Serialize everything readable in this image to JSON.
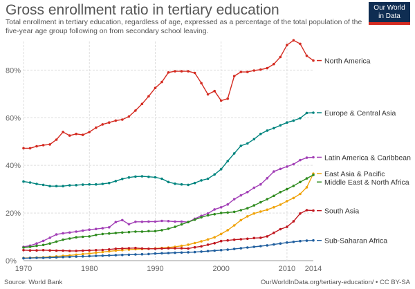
{
  "header": {
    "title": "Gross enrollment ratio in tertiary education",
    "subtitle": "Total enrollment in tertiary education, regardless of age, expressed as a percentage of the total population of the five-year age group following on from secondary school leaving.",
    "logo_line1": "Our World",
    "logo_line2": "in Data"
  },
  "footer": {
    "source": "Source: World Bank",
    "url": "OurWorldInData.org/tertiary-education/ • CC BY-SA"
  },
  "colors": {
    "North America": "#d42b21",
    "Europe & Central Asia": "#00847e",
    "Latin America & Caribbean": "#a23fb6",
    "East Asia & Pacific": "#f0a30a",
    "Middle East & North Africa": "#2e8b1e",
    "South Asia": "#c0161e",
    "Sub-Saharan Africa": "#1f5e9e"
  },
  "chart_data": {
    "type": "line",
    "title": "Gross enrollment ratio in tertiary education",
    "xlabel": "",
    "ylabel": "",
    "xlim": [
      1970,
      2014
    ],
    "ylim": [
      0,
      92
    ],
    "x_ticks": [
      1970,
      1980,
      1990,
      2000,
      2010,
      2014
    ],
    "y_ticks": [
      0,
      20,
      40,
      60,
      80
    ],
    "y_tick_labels": [
      "0%",
      "20%",
      "40%",
      "60%",
      "80%"
    ],
    "grid": true,
    "legend": "right-inline",
    "series": [
      {
        "name": "North America",
        "x": [
          1970,
          1971,
          1972,
          1973,
          1974,
          1975,
          1976,
          1977,
          1978,
          1979,
          1980,
          1981,
          1982,
          1983,
          1984,
          1985,
          1986,
          1987,
          1988,
          1989,
          1990,
          1991,
          1992,
          1993,
          1994,
          1995,
          1996,
          1997,
          1998,
          1999,
          2000,
          2001,
          2002,
          2003,
          2004,
          2005,
          2006,
          2007,
          2008,
          2009,
          2010,
          2011,
          2012,
          2013,
          2014
        ],
        "values": [
          47.2,
          47.2,
          48.0,
          48.5,
          48.8,
          50.8,
          54.0,
          52.5,
          53.2,
          52.8,
          54.0,
          55.8,
          57.2,
          58.0,
          58.8,
          59.2,
          60.5,
          63.0,
          65.8,
          69.0,
          72.5,
          75.0,
          79.0,
          79.5,
          79.5,
          79.5,
          78.8,
          74.5,
          69.8,
          71.2,
          67.2,
          68.0,
          77.5,
          79.2,
          79.2,
          79.8,
          80.2,
          80.8,
          82.5,
          85.5,
          90.5,
          92.5,
          91.0,
          86.0,
          84.0
        ]
      },
      {
        "name": "Europe & Central Asia",
        "x": [
          1970,
          1971,
          1972,
          1973,
          1974,
          1975,
          1976,
          1977,
          1978,
          1979,
          1980,
          1981,
          1982,
          1983,
          1984,
          1985,
          1986,
          1987,
          1988,
          1989,
          1990,
          1991,
          1992,
          1993,
          1994,
          1995,
          1996,
          1997,
          1998,
          1999,
          2000,
          2001,
          2002,
          2003,
          2004,
          2005,
          2006,
          2007,
          2008,
          2009,
          2010,
          2011,
          2012,
          2013,
          2014
        ],
        "values": [
          33.2,
          32.8,
          32.2,
          31.8,
          31.3,
          31.3,
          31.3,
          31.6,
          31.7,
          31.9,
          32.0,
          32.0,
          32.2,
          32.6,
          33.4,
          34.3,
          34.9,
          35.3,
          35.4,
          35.2,
          35.0,
          34.4,
          33.0,
          32.3,
          32.0,
          31.8,
          32.6,
          33.7,
          34.4,
          36.2,
          38.4,
          41.8,
          45.0,
          48.2,
          49.2,
          51.0,
          53.2,
          54.6,
          55.6,
          56.8,
          58.0,
          58.8,
          59.8,
          62.0,
          62.1
        ]
      },
      {
        "name": "Latin America & Caribbean",
        "x": [
          1970,
          1971,
          1972,
          1973,
          1974,
          1975,
          1976,
          1977,
          1978,
          1979,
          1980,
          1981,
          1982,
          1983,
          1984,
          1985,
          1986,
          1987,
          1988,
          1989,
          1990,
          1991,
          1992,
          1993,
          1994,
          1995,
          1996,
          1997,
          1998,
          1999,
          2000,
          2001,
          2002,
          2003,
          2004,
          2005,
          2006,
          2007,
          2008,
          2009,
          2010,
          2011,
          2012,
          2013,
          2014
        ],
        "values": [
          5.8,
          6.3,
          7.2,
          8.3,
          9.6,
          11.0,
          11.5,
          11.8,
          12.2,
          12.6,
          13.0,
          13.3,
          13.6,
          14.0,
          16.2,
          17.0,
          15.3,
          16.3,
          16.3,
          16.4,
          16.4,
          16.7,
          16.6,
          16.4,
          16.4,
          16.2,
          17.6,
          18.8,
          19.8,
          21.5,
          22.4,
          23.6,
          25.8,
          27.4,
          28.8,
          30.6,
          32.0,
          34.6,
          37.4,
          38.5,
          39.5,
          40.5,
          42.2,
          43.2,
          43.4
        ]
      },
      {
        "name": "East Asia & Pacific",
        "x": [
          1970,
          1971,
          1972,
          1973,
          1974,
          1975,
          1976,
          1977,
          1978,
          1979,
          1980,
          1981,
          1982,
          1983,
          1984,
          1985,
          1986,
          1987,
          1988,
          1989,
          1990,
          1991,
          1992,
          1993,
          1994,
          1995,
          1996,
          1997,
          1998,
          1999,
          2000,
          2001,
          2002,
          2003,
          2004,
          2005,
          2006,
          2007,
          2008,
          2009,
          2010,
          2011,
          2012,
          2013,
          2014
        ],
        "values": [
          1.1,
          1.2,
          1.3,
          1.4,
          1.6,
          1.8,
          2.0,
          2.2,
          2.5,
          2.8,
          3.0,
          3.3,
          3.6,
          3.9,
          4.2,
          4.4,
          4.6,
          4.8,
          4.9,
          5.0,
          5.1,
          5.3,
          5.5,
          5.8,
          6.2,
          6.7,
          7.4,
          8.1,
          8.9,
          9.8,
          11.2,
          12.8,
          14.8,
          17.0,
          18.6,
          19.8,
          20.6,
          21.4,
          22.4,
          23.5,
          25.0,
          26.3,
          28.0,
          30.8,
          36.5
        ]
      },
      {
        "name": "Middle East & North Africa",
        "x": [
          1970,
          1971,
          1972,
          1973,
          1974,
          1975,
          1976,
          1977,
          1978,
          1979,
          1980,
          1981,
          1982,
          1983,
          1984,
          1985,
          1986,
          1987,
          1988,
          1989,
          1990,
          1991,
          1992,
          1993,
          1994,
          1995,
          1996,
          1997,
          1998,
          1999,
          2000,
          2001,
          2002,
          2003,
          2004,
          2005,
          2006,
          2007,
          2008,
          2009,
          2010,
          2011,
          2012,
          2013,
          2014
        ],
        "values": [
          5.5,
          5.8,
          6.2,
          6.6,
          7.2,
          8.0,
          8.8,
          9.3,
          9.8,
          10.0,
          10.2,
          10.8,
          11.2,
          11.4,
          11.6,
          11.8,
          12.0,
          12.2,
          12.2,
          12.4,
          12.4,
          12.8,
          13.4,
          14.2,
          15.2,
          16.2,
          17.2,
          18.2,
          19.0,
          19.5,
          20.0,
          20.2,
          20.5,
          21.2,
          22.0,
          23.2,
          24.5,
          25.8,
          27.2,
          28.8,
          30.0,
          31.4,
          33.0,
          34.5,
          36.0
        ]
      },
      {
        "name": "South Asia",
        "x": [
          1970,
          1971,
          1972,
          1973,
          1974,
          1975,
          1976,
          1977,
          1978,
          1979,
          1980,
          1981,
          1982,
          1983,
          1984,
          1985,
          1986,
          1987,
          1988,
          1989,
          1990,
          1991,
          1992,
          1993,
          1994,
          1995,
          1996,
          1997,
          1998,
          1999,
          2000,
          2001,
          2002,
          2003,
          2004,
          2005,
          2006,
          2007,
          2008,
          2009,
          2010,
          2011,
          2012,
          2013,
          2014
        ],
        "values": [
          4.4,
          4.3,
          4.3,
          4.4,
          4.3,
          4.2,
          4.2,
          4.1,
          4.1,
          4.2,
          4.3,
          4.4,
          4.5,
          4.7,
          5.0,
          5.1,
          5.2,
          5.3,
          5.1,
          5.0,
          5.0,
          5.1,
          5.2,
          5.2,
          5.2,
          5.1,
          5.6,
          6.0,
          6.7,
          7.3,
          8.2,
          8.5,
          8.8,
          9.0,
          9.2,
          9.5,
          9.6,
          10.2,
          11.7,
          13.2,
          14.2,
          16.5,
          19.8,
          21.2,
          21.0
        ]
      },
      {
        "name": "Sub-Saharan Africa",
        "x": [
          1970,
          1971,
          1972,
          1973,
          1974,
          1975,
          1976,
          1977,
          1978,
          1979,
          1980,
          1981,
          1982,
          1983,
          1984,
          1985,
          1986,
          1987,
          1988,
          1989,
          1990,
          1991,
          1992,
          1993,
          1994,
          1995,
          1996,
          1997,
          1998,
          1999,
          2000,
          2001,
          2002,
          2003,
          2004,
          2005,
          2006,
          2007,
          2008,
          2009,
          2010,
          2011,
          2012,
          2013,
          2014
        ],
        "values": [
          1.0,
          1.1,
          1.2,
          1.2,
          1.3,
          1.4,
          1.5,
          1.6,
          1.7,
          1.8,
          1.9,
          2.0,
          2.1,
          2.2,
          2.3,
          2.4,
          2.5,
          2.6,
          2.7,
          2.8,
          3.0,
          3.1,
          3.2,
          3.3,
          3.4,
          3.5,
          3.6,
          3.8,
          4.0,
          4.2,
          4.4,
          4.6,
          4.9,
          5.2,
          5.5,
          5.8,
          6.1,
          6.4,
          6.8,
          7.2,
          7.6,
          7.9,
          8.2,
          8.4,
          8.5
        ]
      }
    ],
    "series_labels": [
      {
        "series": "North America",
        "text": "North America"
      },
      {
        "series": "Europe & Central Asia",
        "text": "Europe & Central Asia"
      },
      {
        "series": "Latin America & Caribbean",
        "text": "Latin America & Caribbean"
      },
      {
        "series": "East Asia & Pacific",
        "text": "East Asia & Pacific"
      },
      {
        "series": "Middle East & North Africa",
        "text": "Middle East & North Africa"
      },
      {
        "series": "South Asia",
        "text": "South Asia"
      },
      {
        "series": "Sub-Saharan Africa",
        "text": "Sub-Saharan Africa"
      }
    ]
  }
}
